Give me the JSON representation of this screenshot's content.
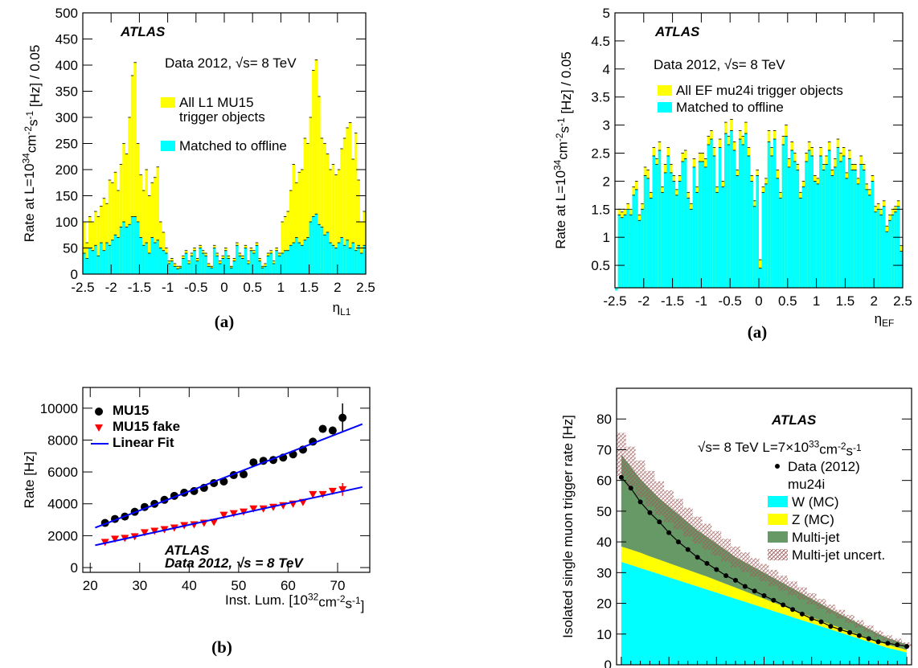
{
  "chart_data": [
    {
      "type": "histogram",
      "title": "ATLAS",
      "subtitle": "Data 2012, √s= 8 TeV",
      "caption": "(a)",
      "ylabel": [
        "Rate at L=10",
        "34",
        "cm",
        "-2",
        "s",
        "-1",
        " [Hz] / 0.05"
      ],
      "xlabel": [
        "η",
        "L1"
      ],
      "xlabel_script": "sub",
      "bins": [
        -2.5,
        -2.45,
        -2.4,
        -2.35,
        -2.3,
        -2.25,
        -2.2,
        -2.15,
        -2.1,
        -2.05,
        -2.0,
        -1.95,
        -1.9,
        -1.85,
        -1.8,
        -1.75,
        -1.7,
        -1.65,
        -1.6,
        -1.55,
        -1.5,
        -1.45,
        -1.4,
        -1.35,
        -1.3,
        -1.25,
        -1.2,
        -1.15,
        -1.1,
        -1.05,
        -1.0,
        -0.95,
        -0.9,
        -0.85,
        -0.8,
        -0.75,
        -0.7,
        -0.65,
        -0.6,
        -0.55,
        -0.5,
        -0.45,
        -0.4,
        -0.35,
        -0.3,
        -0.25,
        -0.2,
        -0.15,
        -0.1,
        -0.05,
        0,
        0.05,
        0.1,
        0.15,
        0.2,
        0.25,
        0.3,
        0.35,
        0.4,
        0.45,
        0.5,
        0.55,
        0.6,
        0.65,
        0.7,
        0.75,
        0.8,
        0.85,
        0.9,
        0.95,
        1.0,
        1.05,
        1.1,
        1.15,
        1.2,
        1.25,
        1.3,
        1.35,
        1.4,
        1.45,
        1.5,
        1.55,
        1.6,
        1.65,
        1.7,
        1.75,
        1.8,
        1.85,
        1.9,
        1.95,
        2.0,
        2.05,
        2.1,
        2.15,
        2.2,
        2.25,
        2.3,
        2.35,
        2.4,
        2.45,
        2.5
      ],
      "series": [
        {
          "name": "All L1 MU15",
          "name_cont": "trigger objects",
          "color": "#ffff00",
          "values": [
            100,
            60,
            110,
            100,
            120,
            110,
            130,
            145,
            135,
            180,
            175,
            195,
            160,
            210,
            250,
            230,
            300,
            380,
            405,
            250,
            190,
            160,
            200,
            150,
            175,
            185,
            205,
            100,
            80,
            50,
            25,
            30,
            20,
            15,
            15,
            35,
            45,
            25,
            40,
            50,
            30,
            55,
            45,
            40,
            20,
            15,
            55,
            40,
            25,
            35,
            50,
            35,
            15,
            30,
            60,
            40,
            35,
            55,
            25,
            50,
            45,
            60,
            30,
            15,
            20,
            40,
            45,
            25,
            50,
            40,
            100,
            110,
            120,
            160,
            210,
            175,
            195,
            200,
            260,
            250,
            300,
            390,
            410,
            340,
            260,
            250,
            230,
            200,
            210,
            190,
            200,
            240,
            260,
            280,
            290,
            220,
            270,
            180,
            100,
            120
          ]
        },
        {
          "name": "Matched to offline",
          "color": "#00ffff",
          "values": [
            40,
            30,
            50,
            45,
            55,
            35,
            60,
            45,
            60,
            55,
            65,
            75,
            70,
            90,
            100,
            90,
            95,
            110,
            110,
            100,
            70,
            55,
            60,
            40,
            70,
            60,
            65,
            50,
            45,
            40,
            20,
            25,
            15,
            10,
            12,
            30,
            40,
            20,
            35,
            45,
            25,
            50,
            40,
            35,
            15,
            12,
            50,
            35,
            20,
            30,
            45,
            30,
            12,
            25,
            55,
            35,
            30,
            50,
            20,
            45,
            40,
            55,
            25,
            12,
            15,
            35,
            40,
            20,
            45,
            35,
            40,
            45,
            45,
            55,
            60,
            70,
            60,
            55,
            65,
            70,
            100,
            110,
            115,
            95,
            90,
            75,
            80,
            60,
            55,
            50,
            60,
            70,
            55,
            65,
            50,
            60,
            45,
            55,
            40,
            55
          ]
        }
      ],
      "xlim": [
        -2.5,
        2.5
      ],
      "xticks": [
        -2.5,
        -2,
        -1.5,
        -1,
        -0.5,
        0,
        0.5,
        1,
        1.5,
        2,
        2.5
      ],
      "ylim": [
        0,
        500
      ],
      "yticks": [
        0,
        50,
        100,
        150,
        200,
        250,
        300,
        350,
        400,
        450,
        500
      ]
    },
    {
      "type": "histogram",
      "title": "ATLAS",
      "subtitle": "Data 2012, √s= 8 TeV",
      "caption": "(a)",
      "ylabel": [
        "Rate at L=10",
        "34",
        "cm",
        "-2",
        "s",
        "-1",
        " [Hz] / 0.05"
      ],
      "xlabel": [
        "η",
        "EF"
      ],
      "xlabel_script": "sub",
      "bins": [
        -2.5,
        -2.45,
        -2.4,
        -2.35,
        -2.3,
        -2.25,
        -2.2,
        -2.15,
        -2.1,
        -2.05,
        -2.0,
        -1.95,
        -1.9,
        -1.85,
        -1.8,
        -1.75,
        -1.7,
        -1.65,
        -1.6,
        -1.55,
        -1.5,
        -1.45,
        -1.4,
        -1.35,
        -1.3,
        -1.25,
        -1.2,
        -1.15,
        -1.1,
        -1.05,
        -1.0,
        -0.95,
        -0.9,
        -0.85,
        -0.8,
        -0.75,
        -0.7,
        -0.65,
        -0.6,
        -0.55,
        -0.5,
        -0.45,
        -0.4,
        -0.35,
        -0.3,
        -0.25,
        -0.2,
        -0.15,
        -0.1,
        -0.05,
        0,
        0.05,
        0.1,
        0.15,
        0.2,
        0.25,
        0.3,
        0.35,
        0.4,
        0.45,
        0.5,
        0.55,
        0.6,
        0.65,
        0.7,
        0.75,
        0.8,
        0.85,
        0.9,
        0.95,
        1.0,
        1.05,
        1.1,
        1.15,
        1.2,
        1.25,
        1.3,
        1.35,
        1.4,
        1.45,
        1.5,
        1.55,
        1.6,
        1.65,
        1.7,
        1.75,
        1.8,
        1.85,
        1.9,
        1.95,
        2.0,
        2.05,
        2.1,
        2.15,
        2.2,
        2.25,
        2.3,
        2.35,
        2.4,
        2.45,
        2.5
      ],
      "series": [
        {
          "name": "All EF mu24i trigger objects",
          "color": "#ffff00",
          "values": [
            0.1,
            1.5,
            1.45,
            1.5,
            1.6,
            1.5,
            1.9,
            2.0,
            1.4,
            1.6,
            2.25,
            2.2,
            1.8,
            2.6,
            2.4,
            2.7,
            1.9,
            2.3,
            2.6,
            2.3,
            2.1,
            1.85,
            2.1,
            2.5,
            2.55,
            1.8,
            1.6,
            2.4,
            1.9,
            2.5,
            2.5,
            2.4,
            2.8,
            2.9,
            2.6,
            1.9,
            2.75,
            2.0,
            3.05,
            2.8,
            3.1,
            2.7,
            2.2,
            2.9,
            2.8,
            3.05,
            2.6,
            2.1,
            1.65,
            2.2,
            0.6,
            1.9,
            2.05,
            2.9,
            2.6,
            2.9,
            2.2,
            1.8,
            2.8,
            3.0,
            2.4,
            2.7,
            2.5,
            2.3,
            1.8,
            2.0,
            2.5,
            2.7,
            2.6,
            2.1,
            2.05,
            2.6,
            2.3,
            2.45,
            2.7,
            2.2,
            2.4,
            2.75,
            2.5,
            2.6,
            2.15,
            2.55,
            2.3,
            2.3,
            2.05,
            2.45,
            2.3,
            1.95,
            1.85,
            2.1,
            1.55,
            1.6,
            1.5,
            1.65,
            1.2,
            1.4,
            1.5,
            1.55,
            1.65,
            0.85
          ]
        },
        {
          "name": "Matched to offline",
          "color": "#00ffff",
          "values": [
            0.05,
            1.4,
            1.35,
            1.4,
            1.5,
            1.4,
            1.75,
            1.85,
            1.3,
            1.5,
            2.1,
            2.05,
            1.7,
            2.45,
            2.3,
            2.55,
            1.8,
            2.15,
            2.45,
            2.15,
            2.0,
            1.75,
            2.0,
            2.35,
            2.4,
            1.7,
            1.5,
            2.25,
            1.8,
            2.35,
            2.35,
            2.25,
            2.65,
            2.75,
            2.45,
            1.8,
            2.6,
            1.9,
            2.85,
            2.65,
            2.9,
            2.55,
            2.1,
            2.75,
            2.65,
            2.85,
            2.45,
            2.0,
            1.55,
            2.1,
            0.45,
            1.8,
            1.95,
            2.7,
            2.45,
            2.75,
            2.05,
            1.7,
            2.65,
            2.8,
            2.25,
            2.55,
            2.35,
            2.2,
            1.7,
            1.9,
            2.35,
            2.55,
            2.45,
            2.0,
            1.95,
            2.45,
            2.2,
            2.3,
            2.55,
            2.1,
            2.25,
            2.6,
            2.35,
            2.45,
            2.05,
            2.4,
            2.2,
            2.2,
            1.95,
            2.3,
            2.2,
            1.85,
            1.75,
            2.0,
            1.45,
            1.5,
            1.4,
            1.55,
            1.1,
            1.3,
            1.4,
            1.45,
            1.55,
            0.75
          ]
        }
      ],
      "xlim": [
        -2.5,
        2.5
      ],
      "xticks": [
        -2.5,
        -2,
        -1.5,
        -1,
        -0.5,
        0,
        0.5,
        1,
        1.5,
        2,
        2.5
      ],
      "ylim": [
        0.1,
        5
      ],
      "yticks": [
        0.5,
        1,
        1.5,
        2,
        2.5,
        3,
        3.5,
        4,
        4.5,
        5
      ]
    },
    {
      "type": "scatter",
      "title": "ATLAS",
      "subtitle": "Data 2012, √s = 8 TeV",
      "caption": "(b)",
      "ylabel": "Rate [Hz]",
      "xlabel": [
        "Inst. Lum. [10",
        "32",
        "cm",
        "-2",
        "s",
        "-1",
        "]"
      ],
      "xlabel_script": "sup",
      "series": [
        {
          "name": "MU15",
          "marker": "circle",
          "color": "#000000",
          "x": [
            23,
            25,
            27,
            29,
            31,
            33,
            35,
            37,
            39,
            41,
            43,
            45,
            47,
            49,
            51,
            53,
            55,
            57,
            59,
            61,
            63,
            65,
            67,
            69,
            71
          ],
          "values": [
            2800,
            3050,
            3200,
            3500,
            3800,
            4000,
            4250,
            4500,
            4700,
            4800,
            5000,
            5300,
            5400,
            5800,
            5850,
            6600,
            6700,
            6750,
            6900,
            7100,
            7400,
            7900,
            8700,
            8600,
            9400
          ],
          "errors": [
            60,
            60,
            60,
            60,
            60,
            60,
            60,
            60,
            60,
            60,
            60,
            60,
            60,
            60,
            60,
            60,
            60,
            60,
            80,
            80,
            100,
            120,
            200,
            250,
            900
          ]
        },
        {
          "name": "MU15 fake",
          "marker": "triangle-down",
          "color": "#ff0000",
          "x": [
            23,
            25,
            27,
            29,
            31,
            33,
            35,
            37,
            39,
            41,
            43,
            45,
            47,
            49,
            51,
            53,
            55,
            57,
            59,
            61,
            63,
            65,
            67,
            69,
            71
          ],
          "values": [
            1600,
            1800,
            1850,
            1950,
            2200,
            2300,
            2400,
            2500,
            2650,
            2700,
            2800,
            2850,
            3300,
            3400,
            3500,
            3700,
            3700,
            3800,
            3900,
            4000,
            4100,
            4600,
            4600,
            4800,
            4900
          ],
          "errors": [
            40,
            40,
            40,
            40,
            40,
            40,
            40,
            40,
            40,
            40,
            40,
            40,
            40,
            40,
            40,
            40,
            40,
            40,
            50,
            50,
            60,
            70,
            100,
            150,
            400
          ]
        },
        {
          "name": "Linear Fit",
          "marker": "line",
          "color": "#0000ff",
          "x": [
            21,
            75
          ],
          "values": [
            2500,
            9000
          ]
        },
        {
          "marker": "line",
          "color": "#0000ff",
          "x": [
            21,
            75
          ],
          "values": [
            1400,
            5050
          ]
        }
      ],
      "xlim": [
        18.5,
        76.5
      ],
      "xticks": [
        20,
        30,
        40,
        50,
        60,
        70
      ],
      "ylim": [
        -300,
        11300
      ],
      "yticks": [
        0,
        2000,
        4000,
        6000,
        8000,
        10000
      ]
    },
    {
      "type": "area",
      "title": "ATLAS",
      "subtitle": [
        "√s= 8 TeV  L=7×10",
        "33",
        "cm",
        "-2",
        "s",
        "-1"
      ],
      "ylabel": "Isolated single muon trigger rate [Hz]",
      "categories": [
        null,
        null,
        null,
        null,
        null,
        null,
        null,
        null,
        null,
        null,
        null,
        null,
        null,
        null,
        null,
        null,
        null,
        null,
        null,
        null,
        null,
        null,
        null,
        null,
        null,
        null,
        null,
        null,
        null,
        null,
        null
      ],
      "data_series": {
        "name": "Data (2012)",
        "name_cont": "mu24i",
        "color": "#000000",
        "values": [
          61,
          57.5,
          53,
          49.5,
          46.5,
          43,
          40,
          37.5,
          35,
          33,
          31,
          29,
          27.5,
          25.5,
          24,
          22.5,
          21,
          19.5,
          18,
          16.5,
          15,
          14,
          12.5,
          11.5,
          10.5,
          9.5,
          8.5,
          7.5,
          7,
          6.5,
          6
        ]
      },
      "series": [
        {
          "name": "W (MC)",
          "color": "#00ffff",
          "values": [
            33.5,
            32.5,
            31.5,
            30.5,
            29.5,
            28.5,
            27.5,
            26.5,
            25.5,
            24.5,
            23.5,
            22.5,
            21.5,
            20.5,
            19.5,
            18.5,
            17.5,
            16.5,
            15.5,
            14.5,
            13.5,
            12.5,
            11.5,
            10.5,
            9.5,
            8.5,
            7.5,
            6.5,
            5.5,
            4.8,
            4
          ]
        },
        {
          "name": "Z (MC)",
          "color": "#ffff00",
          "values": [
            5,
            5,
            5,
            4.8,
            4.7,
            4.6,
            4.5,
            4.4,
            4.3,
            4.2,
            4.0,
            3.8,
            3.6,
            3.4,
            3.2,
            3.0,
            2.8,
            2.6,
            2.4,
            2.2,
            2.0,
            1.8,
            1.6,
            1.5,
            1.4,
            1.3,
            1.2,
            1.1,
            1.0,
            0.9,
            0.8
          ]
        },
        {
          "name": "Multi-jet",
          "color": "#669966",
          "values": [
            30,
            27,
            24,
            22,
            20,
            18.5,
            17,
            15.5,
            14,
            13,
            12,
            11,
            10,
            9.5,
            9,
            8.5,
            8,
            7.5,
            7,
            6.5,
            6,
            5.5,
            5,
            4.5,
            4,
            3.5,
            3,
            2.5,
            2.2,
            2,
            1.8
          ]
        }
      ],
      "uncertainty": {
        "name": "Multi-jet uncert.",
        "color": "#a05a5a",
        "values": [
          7,
          6.5,
          6,
          5.8,
          5.5,
          5.2,
          5,
          4.7,
          4.4,
          4.2,
          4,
          3.7,
          3.4,
          3.2,
          3,
          2.8,
          2.6,
          2.4,
          2.2,
          2,
          1.8,
          1.6,
          1.5,
          1.4,
          1.3,
          1.2,
          1.1,
          1.0,
          0.9,
          0.8,
          0.7
        ]
      },
      "ylim": [
        0,
        90
      ],
      "yticks": [
        0,
        10,
        20,
        30,
        40,
        50,
        60,
        70,
        80
      ]
    }
  ]
}
